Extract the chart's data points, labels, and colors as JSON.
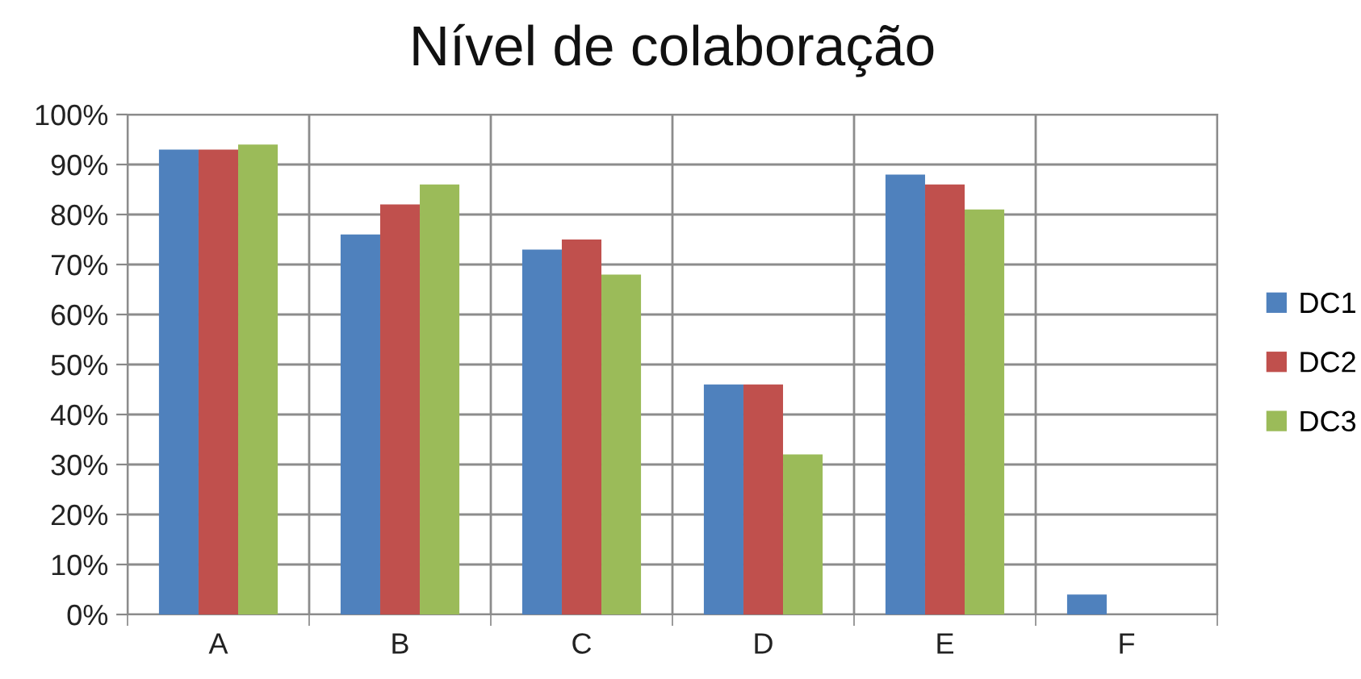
{
  "chart_data": {
    "type": "bar",
    "title": "Nível de colaboração",
    "categories": [
      "A",
      "B",
      "C",
      "D",
      "E",
      "F"
    ],
    "series": [
      {
        "name": "DC1",
        "color": "#4f81bd",
        "values": [
          93,
          76,
          73,
          46,
          88,
          4
        ]
      },
      {
        "name": "DC2",
        "color": "#c0504d",
        "values": [
          93,
          82,
          75,
          46,
          86,
          null
        ]
      },
      {
        "name": "DC3",
        "color": "#9bbb59",
        "values": [
          94,
          86,
          68,
          32,
          81,
          null
        ]
      }
    ],
    "ylim": [
      0,
      100
    ],
    "yticks": [
      {
        "value": 0,
        "label": "0%"
      },
      {
        "value": 10,
        "label": "10%"
      },
      {
        "value": 20,
        "label": "20%"
      },
      {
        "value": 30,
        "label": "30%"
      },
      {
        "value": 40,
        "label": "40%"
      },
      {
        "value": 50,
        "label": "50%"
      },
      {
        "value": 60,
        "label": "60%"
      },
      {
        "value": 70,
        "label": "70%"
      },
      {
        "value": 80,
        "label": "80%"
      },
      {
        "value": 90,
        "label": "90%"
      },
      {
        "value": 100,
        "label": "100%"
      }
    ],
    "grid": true,
    "legend": "right"
  }
}
